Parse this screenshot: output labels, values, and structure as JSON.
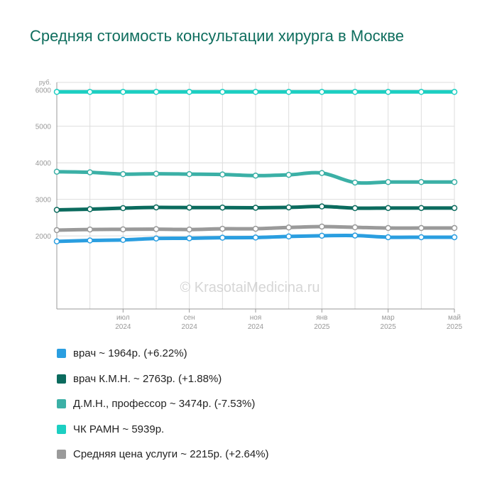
{
  "chart_data": {
    "type": "line",
    "title": "Средняя стоимость консультации хирурга в Москве",
    "ylabel": "руб.",
    "xlabel": "",
    "ylim": [
      0,
      6200
    ],
    "y_ticks": [
      2000,
      3000,
      4000,
      5000,
      6000
    ],
    "x_points": [
      "2024-05",
      "2024-06",
      "2024-07",
      "2024-08",
      "2024-09",
      "2024-10",
      "2024-11",
      "2024-12",
      "2025-01",
      "2025-02",
      "2025-03",
      "2025-04",
      "2025-05"
    ],
    "x_tick_labels": [
      {
        "month": "июл",
        "year": "2024",
        "at": "2024-07"
      },
      {
        "month": "сен",
        "year": "2024",
        "at": "2024-09"
      },
      {
        "month": "ноя",
        "year": "2024",
        "at": "2024-11"
      },
      {
        "month": "янв",
        "year": "2025",
        "at": "2025-01"
      },
      {
        "month": "мар",
        "year": "2025",
        "at": "2025-03"
      },
      {
        "month": "май",
        "year": "2025",
        "at": "2025-05"
      }
    ],
    "grid": true,
    "legend_position": "bottom",
    "watermark": "© KrasotaiMedicina.ru",
    "series": [
      {
        "name": "врач",
        "color": "#2a9ee0",
        "values": [
          1849,
          1875,
          1890,
          1930,
          1935,
          1950,
          1955,
          1985,
          2005,
          2010,
          1964,
          1964,
          1964
        ]
      },
      {
        "name": "врач К.М.Н.",
        "color": "#0b6b5e",
        "values": [
          2712,
          2730,
          2760,
          2780,
          2775,
          2775,
          2770,
          2780,
          2805,
          2760,
          2763,
          2763,
          2763
        ]
      },
      {
        "name": "Д.М.Н., профессор",
        "color": "#3bb0a6",
        "values": [
          3757,
          3740,
          3690,
          3700,
          3690,
          3680,
          3650,
          3670,
          3720,
          3460,
          3474,
          3474,
          3474
        ]
      },
      {
        "name": "ЧК РАМН",
        "color": "#1ccfc2",
        "values": [
          5939,
          5939,
          5939,
          5939,
          5939,
          5939,
          5939,
          5939,
          5939,
          5939,
          5939,
          5939,
          5939
        ]
      },
      {
        "name": "Средняя цена услуги",
        "color": "#9a9a9a",
        "values": [
          2158,
          2175,
          2180,
          2185,
          2175,
          2195,
          2195,
          2230,
          2255,
          2235,
          2215,
          2215,
          2215
        ]
      }
    ]
  },
  "legend": {
    "items": [
      {
        "label": "врач ~ 1964р. (+6.22%)",
        "color": "#2a9ee0"
      },
      {
        "label": "врач К.М.Н. ~ 2763р. (+1.88%)",
        "color": "#0b6b5e"
      },
      {
        "label": "Д.М.Н., профессор ~ 3474р. (-7.53%)",
        "color": "#3bb0a6"
      },
      {
        "label": "ЧК РАМН ~ 5939р.",
        "color": "#1ccfc2"
      },
      {
        "label": "Средняя цена услуги ~ 2215р. (+2.64%)",
        "color": "#9a9a9a"
      }
    ]
  }
}
